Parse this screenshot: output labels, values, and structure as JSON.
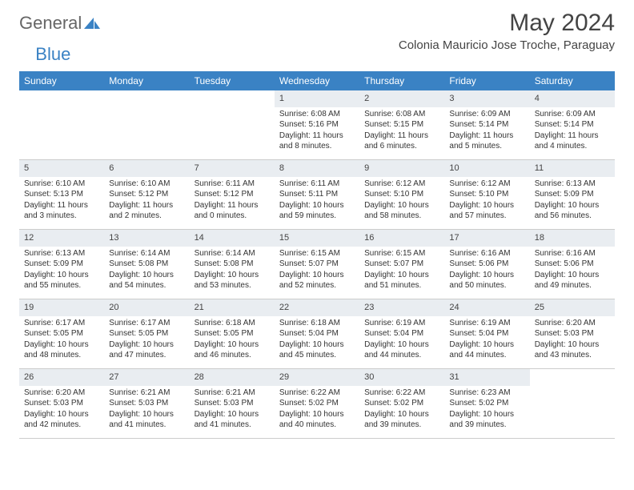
{
  "brand": {
    "general": "General",
    "blue": "Blue"
  },
  "header": {
    "title": "May 2024",
    "location": "Colonia Mauricio Jose Troche, Paraguay"
  },
  "colors": {
    "header_bg": "#3a82c4",
    "daynum_bg": "#e9edf1",
    "text": "#333333",
    "border": "#cccccc"
  },
  "weekdays": [
    "Sunday",
    "Monday",
    "Tuesday",
    "Wednesday",
    "Thursday",
    "Friday",
    "Saturday"
  ],
  "weeks": [
    [
      null,
      null,
      null,
      {
        "n": "1",
        "sr": "Sunrise: 6:08 AM",
        "ss": "Sunset: 5:16 PM",
        "dl1": "Daylight: 11 hours",
        "dl2": "and 8 minutes."
      },
      {
        "n": "2",
        "sr": "Sunrise: 6:08 AM",
        "ss": "Sunset: 5:15 PM",
        "dl1": "Daylight: 11 hours",
        "dl2": "and 6 minutes."
      },
      {
        "n": "3",
        "sr": "Sunrise: 6:09 AM",
        "ss": "Sunset: 5:14 PM",
        "dl1": "Daylight: 11 hours",
        "dl2": "and 5 minutes."
      },
      {
        "n": "4",
        "sr": "Sunrise: 6:09 AM",
        "ss": "Sunset: 5:14 PM",
        "dl1": "Daylight: 11 hours",
        "dl2": "and 4 minutes."
      }
    ],
    [
      {
        "n": "5",
        "sr": "Sunrise: 6:10 AM",
        "ss": "Sunset: 5:13 PM",
        "dl1": "Daylight: 11 hours",
        "dl2": "and 3 minutes."
      },
      {
        "n": "6",
        "sr": "Sunrise: 6:10 AM",
        "ss": "Sunset: 5:12 PM",
        "dl1": "Daylight: 11 hours",
        "dl2": "and 2 minutes."
      },
      {
        "n": "7",
        "sr": "Sunrise: 6:11 AM",
        "ss": "Sunset: 5:12 PM",
        "dl1": "Daylight: 11 hours",
        "dl2": "and 0 minutes."
      },
      {
        "n": "8",
        "sr": "Sunrise: 6:11 AM",
        "ss": "Sunset: 5:11 PM",
        "dl1": "Daylight: 10 hours",
        "dl2": "and 59 minutes."
      },
      {
        "n": "9",
        "sr": "Sunrise: 6:12 AM",
        "ss": "Sunset: 5:10 PM",
        "dl1": "Daylight: 10 hours",
        "dl2": "and 58 minutes."
      },
      {
        "n": "10",
        "sr": "Sunrise: 6:12 AM",
        "ss": "Sunset: 5:10 PM",
        "dl1": "Daylight: 10 hours",
        "dl2": "and 57 minutes."
      },
      {
        "n": "11",
        "sr": "Sunrise: 6:13 AM",
        "ss": "Sunset: 5:09 PM",
        "dl1": "Daylight: 10 hours",
        "dl2": "and 56 minutes."
      }
    ],
    [
      {
        "n": "12",
        "sr": "Sunrise: 6:13 AM",
        "ss": "Sunset: 5:09 PM",
        "dl1": "Daylight: 10 hours",
        "dl2": "and 55 minutes."
      },
      {
        "n": "13",
        "sr": "Sunrise: 6:14 AM",
        "ss": "Sunset: 5:08 PM",
        "dl1": "Daylight: 10 hours",
        "dl2": "and 54 minutes."
      },
      {
        "n": "14",
        "sr": "Sunrise: 6:14 AM",
        "ss": "Sunset: 5:08 PM",
        "dl1": "Daylight: 10 hours",
        "dl2": "and 53 minutes."
      },
      {
        "n": "15",
        "sr": "Sunrise: 6:15 AM",
        "ss": "Sunset: 5:07 PM",
        "dl1": "Daylight: 10 hours",
        "dl2": "and 52 minutes."
      },
      {
        "n": "16",
        "sr": "Sunrise: 6:15 AM",
        "ss": "Sunset: 5:07 PM",
        "dl1": "Daylight: 10 hours",
        "dl2": "and 51 minutes."
      },
      {
        "n": "17",
        "sr": "Sunrise: 6:16 AM",
        "ss": "Sunset: 5:06 PM",
        "dl1": "Daylight: 10 hours",
        "dl2": "and 50 minutes."
      },
      {
        "n": "18",
        "sr": "Sunrise: 6:16 AM",
        "ss": "Sunset: 5:06 PM",
        "dl1": "Daylight: 10 hours",
        "dl2": "and 49 minutes."
      }
    ],
    [
      {
        "n": "19",
        "sr": "Sunrise: 6:17 AM",
        "ss": "Sunset: 5:05 PM",
        "dl1": "Daylight: 10 hours",
        "dl2": "and 48 minutes."
      },
      {
        "n": "20",
        "sr": "Sunrise: 6:17 AM",
        "ss": "Sunset: 5:05 PM",
        "dl1": "Daylight: 10 hours",
        "dl2": "and 47 minutes."
      },
      {
        "n": "21",
        "sr": "Sunrise: 6:18 AM",
        "ss": "Sunset: 5:05 PM",
        "dl1": "Daylight: 10 hours",
        "dl2": "and 46 minutes."
      },
      {
        "n": "22",
        "sr": "Sunrise: 6:18 AM",
        "ss": "Sunset: 5:04 PM",
        "dl1": "Daylight: 10 hours",
        "dl2": "and 45 minutes."
      },
      {
        "n": "23",
        "sr": "Sunrise: 6:19 AM",
        "ss": "Sunset: 5:04 PM",
        "dl1": "Daylight: 10 hours",
        "dl2": "and 44 minutes."
      },
      {
        "n": "24",
        "sr": "Sunrise: 6:19 AM",
        "ss": "Sunset: 5:04 PM",
        "dl1": "Daylight: 10 hours",
        "dl2": "and 44 minutes."
      },
      {
        "n": "25",
        "sr": "Sunrise: 6:20 AM",
        "ss": "Sunset: 5:03 PM",
        "dl1": "Daylight: 10 hours",
        "dl2": "and 43 minutes."
      }
    ],
    [
      {
        "n": "26",
        "sr": "Sunrise: 6:20 AM",
        "ss": "Sunset: 5:03 PM",
        "dl1": "Daylight: 10 hours",
        "dl2": "and 42 minutes."
      },
      {
        "n": "27",
        "sr": "Sunrise: 6:21 AM",
        "ss": "Sunset: 5:03 PM",
        "dl1": "Daylight: 10 hours",
        "dl2": "and 41 minutes."
      },
      {
        "n": "28",
        "sr": "Sunrise: 6:21 AM",
        "ss": "Sunset: 5:03 PM",
        "dl1": "Daylight: 10 hours",
        "dl2": "and 41 minutes."
      },
      {
        "n": "29",
        "sr": "Sunrise: 6:22 AM",
        "ss": "Sunset: 5:02 PM",
        "dl1": "Daylight: 10 hours",
        "dl2": "and 40 minutes."
      },
      {
        "n": "30",
        "sr": "Sunrise: 6:22 AM",
        "ss": "Sunset: 5:02 PM",
        "dl1": "Daylight: 10 hours",
        "dl2": "and 39 minutes."
      },
      {
        "n": "31",
        "sr": "Sunrise: 6:23 AM",
        "ss": "Sunset: 5:02 PM",
        "dl1": "Daylight: 10 hours",
        "dl2": "and 39 minutes."
      },
      null
    ]
  ]
}
